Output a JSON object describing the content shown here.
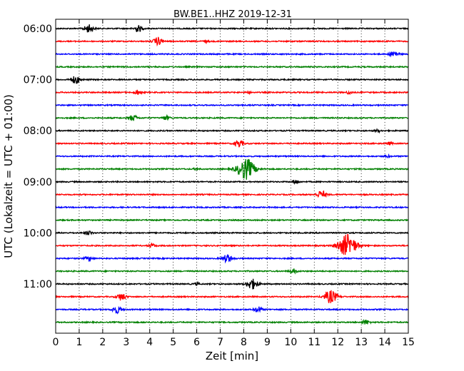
{
  "chart_data": {
    "type": "line",
    "title": "BW.BE1..HHZ 2019-12-31",
    "xlabel": "Zeit  [min]",
    "ylabel": "UTC (Lokalzeit = UTC + 01:00)",
    "xlim": [
      0,
      15
    ],
    "x_ticks": [
      "0",
      "1",
      "2",
      "3",
      "4",
      "5",
      "6",
      "7",
      "8",
      "9",
      "10",
      "11",
      "12",
      "13",
      "14",
      "15"
    ],
    "y_tick_labels": [
      "06:00",
      "07:00",
      "08:00",
      "09:00",
      "10:00",
      "11:00"
    ],
    "grid": "vertical dotted lines at each minute",
    "trace_interval_minutes": 15,
    "series_colors": [
      "#000000",
      "#ff0000",
      "#0000ff",
      "#008000"
    ],
    "traces": [
      {
        "start": "06:00",
        "color": "#000000",
        "events": [
          [
            1.4,
            0.6
          ],
          [
            3.5,
            0.5
          ]
        ]
      },
      {
        "start": "06:15",
        "color": "#ff0000",
        "events": [
          [
            4.35,
            0.6
          ],
          [
            6.4,
            0.2
          ]
        ]
      },
      {
        "start": "06:30",
        "color": "#0000ff",
        "events": [
          [
            14.4,
            0.5
          ]
        ]
      },
      {
        "start": "06:45",
        "color": "#008000",
        "events": []
      },
      {
        "start": "07:00",
        "color": "#000000",
        "events": [
          [
            0.85,
            0.6
          ]
        ]
      },
      {
        "start": "07:15",
        "color": "#ff0000",
        "events": [
          [
            3.5,
            0.35
          ],
          [
            8.2,
            0.15
          ],
          [
            12.5,
            0.25
          ]
        ]
      },
      {
        "start": "07:30",
        "color": "#0000ff",
        "events": []
      },
      {
        "start": "07:45",
        "color": "#008000",
        "events": [
          [
            3.3,
            0.45
          ],
          [
            4.7,
            0.35
          ]
        ]
      },
      {
        "start": "08:00",
        "color": "#000000",
        "events": [
          [
            13.7,
            0.2
          ]
        ]
      },
      {
        "start": "08:15",
        "color": "#ff0000",
        "events": [
          [
            7.8,
            0.55
          ],
          [
            14.2,
            0.2
          ]
        ]
      },
      {
        "start": "08:30",
        "color": "#0000ff",
        "events": [
          [
            14.1,
            0.2
          ]
        ]
      },
      {
        "start": "08:45",
        "color": "#008000",
        "events": [
          [
            8.1,
            1.6
          ],
          [
            6.0,
            0.15
          ]
        ]
      },
      {
        "start": "09:00",
        "color": "#000000",
        "events": [
          [
            10.2,
            0.3
          ]
        ]
      },
      {
        "start": "09:15",
        "color": "#ff0000",
        "events": [
          [
            11.3,
            0.6
          ]
        ]
      },
      {
        "start": "09:30",
        "color": "#0000ff",
        "events": []
      },
      {
        "start": "09:45",
        "color": "#008000",
        "events": []
      },
      {
        "start": "10:00",
        "color": "#000000",
        "events": [
          [
            1.4,
            0.3
          ]
        ]
      },
      {
        "start": "10:15",
        "color": "#ff0000",
        "events": [
          [
            12.4,
            1.7
          ],
          [
            4.1,
            0.3
          ]
        ]
      },
      {
        "start": "10:30",
        "color": "#0000ff",
        "events": [
          [
            1.4,
            0.35
          ],
          [
            7.3,
            0.6
          ]
        ]
      },
      {
        "start": "10:45",
        "color": "#008000",
        "events": [
          [
            10.1,
            0.35
          ]
        ]
      },
      {
        "start": "11:00",
        "color": "#000000",
        "events": [
          [
            8.35,
            0.8
          ],
          [
            6.0,
            0.15
          ]
        ]
      },
      {
        "start": "11:15",
        "color": "#ff0000",
        "events": [
          [
            2.8,
            0.55
          ],
          [
            11.7,
            1.0
          ]
        ]
      },
      {
        "start": "11:30",
        "color": "#0000ff",
        "events": [
          [
            2.6,
            0.55
          ],
          [
            8.6,
            0.45
          ]
        ]
      },
      {
        "start": "11:45",
        "color": "#008000",
        "events": [
          [
            13.2,
            0.35
          ]
        ]
      }
    ]
  }
}
